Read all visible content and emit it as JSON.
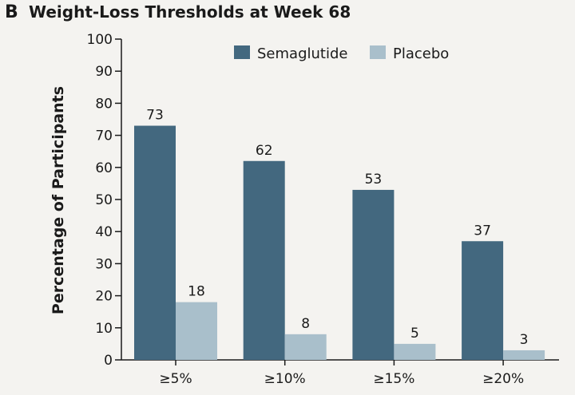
{
  "panel_letter": "B",
  "title": "Weight-Loss Thresholds at Week 68",
  "colors": {
    "semaglutide": "#43687f",
    "placebo": "#a9bfcb",
    "background": "#f4f3f0",
    "text": "#1a1a1a"
  },
  "chart_data": {
    "type": "bar",
    "title": "Weight-Loss Thresholds at Week 68",
    "xlabel": "",
    "ylabel": "Percentage of Participants",
    "categories": [
      "≥5%",
      "≥10%",
      "≥15%",
      "≥20%"
    ],
    "series": [
      {
        "name": "Semaglutide",
        "values": [
          73,
          62,
          53,
          37
        ]
      },
      {
        "name": "Placebo",
        "values": [
          18,
          8,
          5,
          3
        ]
      }
    ],
    "ylim": [
      0,
      100
    ],
    "yticks": [
      0,
      10,
      20,
      30,
      40,
      50,
      60,
      70,
      80,
      90,
      100
    ],
    "ytick_labels": [
      "0",
      "10",
      "20",
      "30",
      "40",
      "50",
      "60",
      "70",
      "80",
      "90",
      "100"
    ],
    "data_labels": [
      [
        "73",
        "62",
        "53",
        "37"
      ],
      [
        "18",
        "8",
        "5",
        "3"
      ]
    ],
    "grid": false,
    "legend_position": "top-right"
  }
}
